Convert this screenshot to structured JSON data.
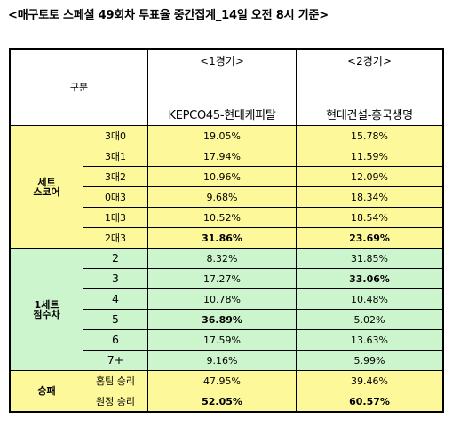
{
  "title": "<매구토토 스페셜 49회차 투표율 중간집계_14일 오전 8시 기준>",
  "header": {
    "gubun": "구분",
    "games": [
      {
        "num": "<1경기>",
        "match": "KEPCO45-현대캐피탈"
      },
      {
        "num": "<2경기>",
        "match": "현대건설-흥국생명"
      }
    ]
  },
  "sections": [
    {
      "label_line1": "세트",
      "label_line2": "스코어",
      "color": "#fdf89a",
      "rows": [
        {
          "label": "3대0",
          "g1": "19.05%",
          "g2": "15.78%",
          "g1_bold": false,
          "g2_bold": false
        },
        {
          "label": "3대1",
          "g1": "17.94%",
          "g2": "11.59%",
          "g1_bold": false,
          "g2_bold": false
        },
        {
          "label": "3대2",
          "g1": "10.96%",
          "g2": "12.09%",
          "g1_bold": false,
          "g2_bold": false
        },
        {
          "label": "0대3",
          "g1": "9.68%",
          "g2": "18.34%",
          "g1_bold": false,
          "g2_bold": false
        },
        {
          "label": "1대3",
          "g1": "10.52%",
          "g2": "18.54%",
          "g1_bold": false,
          "g2_bold": false
        },
        {
          "label": "2대3",
          "g1": "31.86%",
          "g2": "23.69%",
          "g1_bold": true,
          "g2_bold": true
        }
      ]
    },
    {
      "label_line1": "1세트",
      "label_line2": "점수차",
      "color": "#cdf5cd",
      "rows": [
        {
          "label": "2",
          "g1": "8.32%",
          "g2": "31.85%",
          "g1_bold": false,
          "g2_bold": false
        },
        {
          "label": "3",
          "g1": "17.27%",
          "g2": "33.06%",
          "g1_bold": false,
          "g2_bold": true
        },
        {
          "label": "4",
          "g1": "10.78%",
          "g2": "10.48%",
          "g1_bold": false,
          "g2_bold": false
        },
        {
          "label": "5",
          "g1": "36.89%",
          "g2": "5.02%",
          "g1_bold": true,
          "g2_bold": false
        },
        {
          "label": "6",
          "g1": "17.59%",
          "g2": "13.63%",
          "g1_bold": false,
          "g2_bold": false
        },
        {
          "label": "7+",
          "g1": "9.16%",
          "g2": "5.99%",
          "g1_bold": false,
          "g2_bold": false
        }
      ]
    },
    {
      "label_line1": "승패",
      "label_line2": "",
      "color": "#fdf89a",
      "rows": [
        {
          "label": "홈팀 승리",
          "g1": "47.95%",
          "g2": "39.46%",
          "g1_bold": false,
          "g2_bold": false
        },
        {
          "label": "원정 승리",
          "g1": "52.05%",
          "g2": "60.57%",
          "g1_bold": true,
          "g2_bold": true
        }
      ]
    }
  ]
}
